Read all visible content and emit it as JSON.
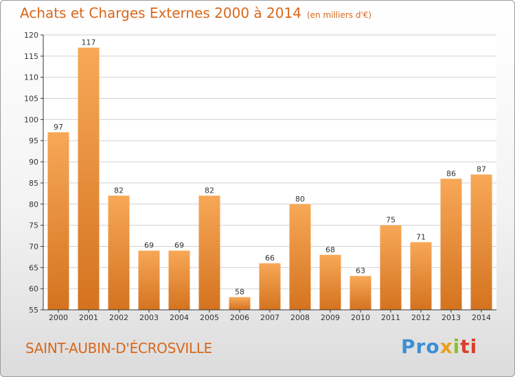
{
  "header": {
    "title": "Achats et Charges Externes 2000 à 2014",
    "subtitle": "(en milliers d'€)"
  },
  "footer": {
    "city": "SAINT-AUBIN-D'ÉCROSVILLE",
    "logo_parts": [
      "Pro",
      "x",
      "i",
      "ti"
    ]
  },
  "colors": {
    "bar_top": "#f7a857",
    "bar_bottom": "#d4731f",
    "title": "#d9661a",
    "grid": "#d0d0d0",
    "axis": "#333333"
  },
  "chart_data": {
    "type": "bar",
    "title": "Achats et Charges Externes 2000 à 2014",
    "subtitle": "(en milliers d'€)",
    "categories": [
      "2000",
      "2001",
      "2002",
      "2003",
      "2004",
      "2005",
      "2006",
      "2007",
      "2008",
      "2009",
      "2010",
      "2011",
      "2012",
      "2013",
      "2014"
    ],
    "values": [
      97,
      117,
      82,
      69,
      69,
      82,
      58,
      66,
      80,
      68,
      63,
      75,
      71,
      86,
      87
    ],
    "ylim": [
      55,
      120
    ],
    "yticks": [
      55,
      60,
      65,
      70,
      75,
      80,
      85,
      90,
      95,
      100,
      105,
      110,
      115,
      120
    ],
    "grid": true,
    "legend": "none"
  }
}
